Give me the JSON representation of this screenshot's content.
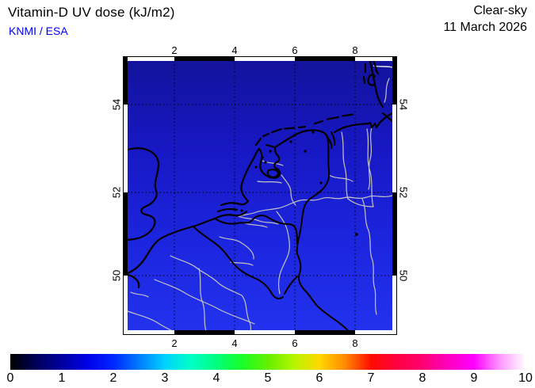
{
  "header": {
    "title": "Vitamin-D UV dose (kJ/m2)",
    "source": "KNMI / ESA",
    "condition": "Clear-sky",
    "date": "11 March 2026"
  },
  "map": {
    "x_ticks": [
      "2",
      "4",
      "6",
      "8"
    ],
    "y_ticks": [
      "54",
      "52",
      "50"
    ],
    "field_gradient": [
      "#13139C",
      "#1718C4",
      "#1C25DE",
      "#2232EE"
    ],
    "coastline_color": "#000000",
    "inner_border_color": "#C3C3C3",
    "grid_color": "#000000"
  },
  "colorbar": {
    "ticks": [
      "0",
      "1",
      "2",
      "3",
      "4",
      "5",
      "6",
      "7",
      "8",
      "9",
      "10"
    ],
    "unit": "kJ/m2",
    "stops": [
      [
        "0%",
        "#000000"
      ],
      [
        "5%",
        "#000058"
      ],
      [
        "10%",
        "#0000A0"
      ],
      [
        "15%",
        "#0000E8"
      ],
      [
        "20%",
        "#0026FF"
      ],
      [
        "25%",
        "#007CFF"
      ],
      [
        "30%",
        "#00D2FF"
      ],
      [
        "35%",
        "#00FFC8"
      ],
      [
        "40%",
        "#00FF7C"
      ],
      [
        "45%",
        "#18FF28"
      ],
      [
        "50%",
        "#64F000"
      ],
      [
        "55%",
        "#B4F500"
      ],
      [
        "60%",
        "#FFD800"
      ],
      [
        "65%",
        "#FF8A00"
      ],
      [
        "70%",
        "#FF0C00"
      ],
      [
        "75%",
        "#FF0040"
      ],
      [
        "80%",
        "#FF0072"
      ],
      [
        "85%",
        "#FF00BE"
      ],
      [
        "90%",
        "#FF00FF"
      ],
      [
        "95%",
        "#FF96FF"
      ],
      [
        "100%",
        "#FFFFFF"
      ]
    ]
  },
  "chart_data": {
    "type": "heatmap",
    "title": "Vitamin-D UV dose (kJ/m2)",
    "subtitle": "KNMI / ESA",
    "condition": "Clear-sky",
    "date": "11 March 2026",
    "projection_region": {
      "lon_ticks_deg_east": [
        2,
        4,
        6,
        8
      ],
      "lat_ticks_deg_north": [
        54,
        52,
        50
      ],
      "approx_bounds": {
        "west": 0.3,
        "east": 9.3,
        "south": 48.6,
        "north": 55.1
      }
    },
    "colorbar_scale": {
      "min": 0,
      "max": 10,
      "tick_step": 1,
      "unit": "kJ/m2"
    },
    "field_values_approx_kj_m2": {
      "north_edge": 1.7,
      "center": 2.0,
      "south_edge": 2.3
    },
    "legend_position": "bottom",
    "grid": "dotted"
  }
}
